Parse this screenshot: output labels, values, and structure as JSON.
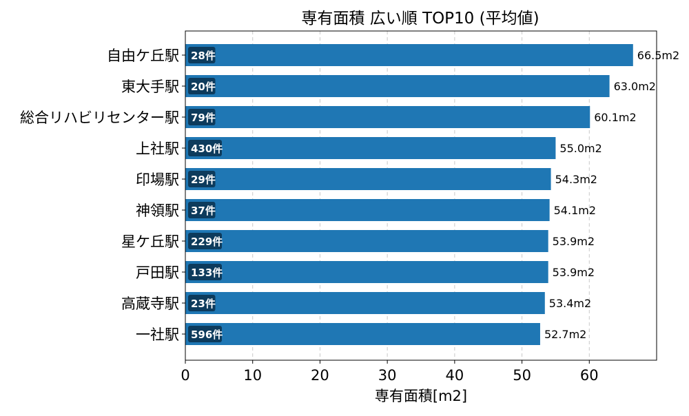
{
  "chart_data": {
    "type": "bar",
    "orientation": "horizontal",
    "title": "専有面積 広い順 TOP10 (平均値)",
    "xlabel": "専有面積[m2]",
    "ylabel": "",
    "xlim": [
      0,
      70
    ],
    "xticks": [
      0,
      10,
      20,
      30,
      40,
      50,
      60
    ],
    "grid": "x-dashed",
    "categories": [
      "自由ケ丘駅",
      "東大手駅",
      "総合リハビリセンター駅",
      "上社駅",
      "印場駅",
      "神領駅",
      "星ケ丘駅",
      "戸田駅",
      "高蔵寺駅",
      "一社駅"
    ],
    "values": [
      66.5,
      63.0,
      60.1,
      55.0,
      54.3,
      54.1,
      53.9,
      53.9,
      53.4,
      52.7
    ],
    "value_labels": [
      "66.5m2",
      "63.0m2",
      "60.1m2",
      "55.0m2",
      "54.3m2",
      "54.1m2",
      "53.9m2",
      "53.9m2",
      "53.4m2",
      "52.7m2"
    ],
    "count_labels": [
      "28件",
      "20件",
      "79件",
      "430件",
      "29件",
      "37件",
      "229件",
      "133件",
      "23件",
      "596件"
    ],
    "colors": {
      "bar": "#1f77b4",
      "badge": "#0d3b5c",
      "grid": "#c8c8c8",
      "axis": "#000000"
    }
  }
}
